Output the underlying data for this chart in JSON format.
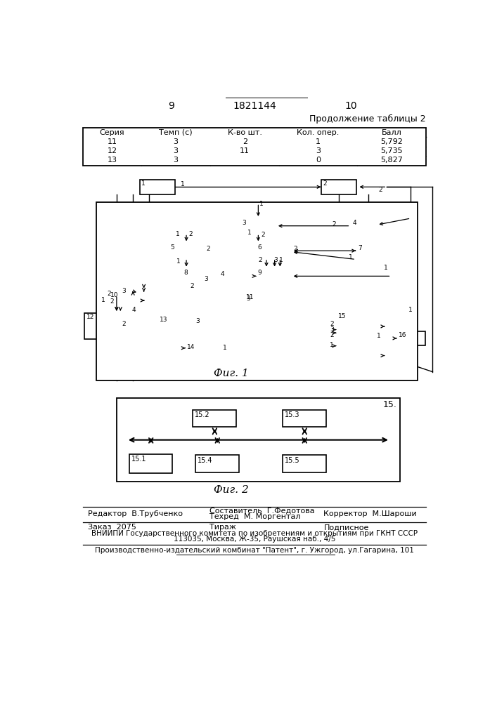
{
  "page_number_left": "9",
  "page_number_center": "1821144",
  "page_number_right": "10",
  "table_title": "Продолжение таблицы 2",
  "table_headers": [
    "Серия",
    "Темп (с)",
    "К-во шт.",
    "Кол. опер.",
    "Балл"
  ],
  "table_rows": [
    [
      "11",
      "3",
      "2",
      "1",
      "5,792"
    ],
    [
      "12",
      "3",
      "11",
      "3",
      "5,735"
    ],
    [
      "13",
      "3",
      "",
      "0",
      "5,827"
    ]
  ],
  "fig1_caption": "Фиг. 1",
  "fig2_caption": "Фиг. 2",
  "footer_editor": "Редактор  В.Трубченко",
  "footer_composer": "Составитель  Г.Федотова",
  "footer_tech": "Техред  М. Моргентал",
  "footer_corrector": "Корректор  М.Шароши",
  "footer_order": "Заказ  2075",
  "footer_circulation": "Тираж",
  "footer_subscription": "Подписное",
  "footer_vniip1": "ВНИИПИ Государственного комитета по изобретениям и открытиям при ГКНТ СССР",
  "footer_vniip2": "113035, Москва, Ж-35, Раушская наб., 4/5",
  "footer_publisher": "Производственно-издательский комбинат \"Патент\", г. Ужгород, ул.Гагарина, 101",
  "bg_color": "#ffffff"
}
